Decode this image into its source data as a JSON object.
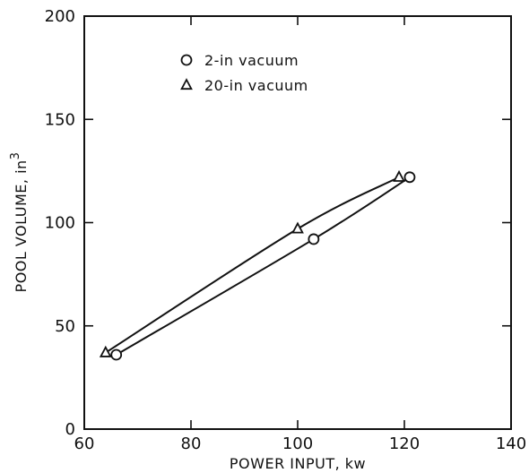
{
  "chart_data": {
    "type": "line",
    "title": "",
    "xlabel": "POWER INPUT, kw",
    "ylabel": "POOL VOLUME, in",
    "ylabel_superscript": "3",
    "xlim": [
      60,
      140
    ],
    "ylim": [
      0,
      200
    ],
    "xticks": [
      60,
      80,
      100,
      120,
      140
    ],
    "yticks": [
      0,
      50,
      100,
      150,
      200
    ],
    "grid": false,
    "legend_position": "top-left",
    "series": [
      {
        "name": "2-in vacuum",
        "marker": "circle",
        "points": [
          {
            "x": 66,
            "y": 36
          },
          {
            "x": 103,
            "y": 92
          },
          {
            "x": 121,
            "y": 122
          }
        ]
      },
      {
        "name": "20-in vacuum",
        "marker": "triangle",
        "points": [
          {
            "x": 64,
            "y": 37
          },
          {
            "x": 100,
            "y": 97
          },
          {
            "x": 119,
            "y": 122
          }
        ]
      }
    ]
  }
}
